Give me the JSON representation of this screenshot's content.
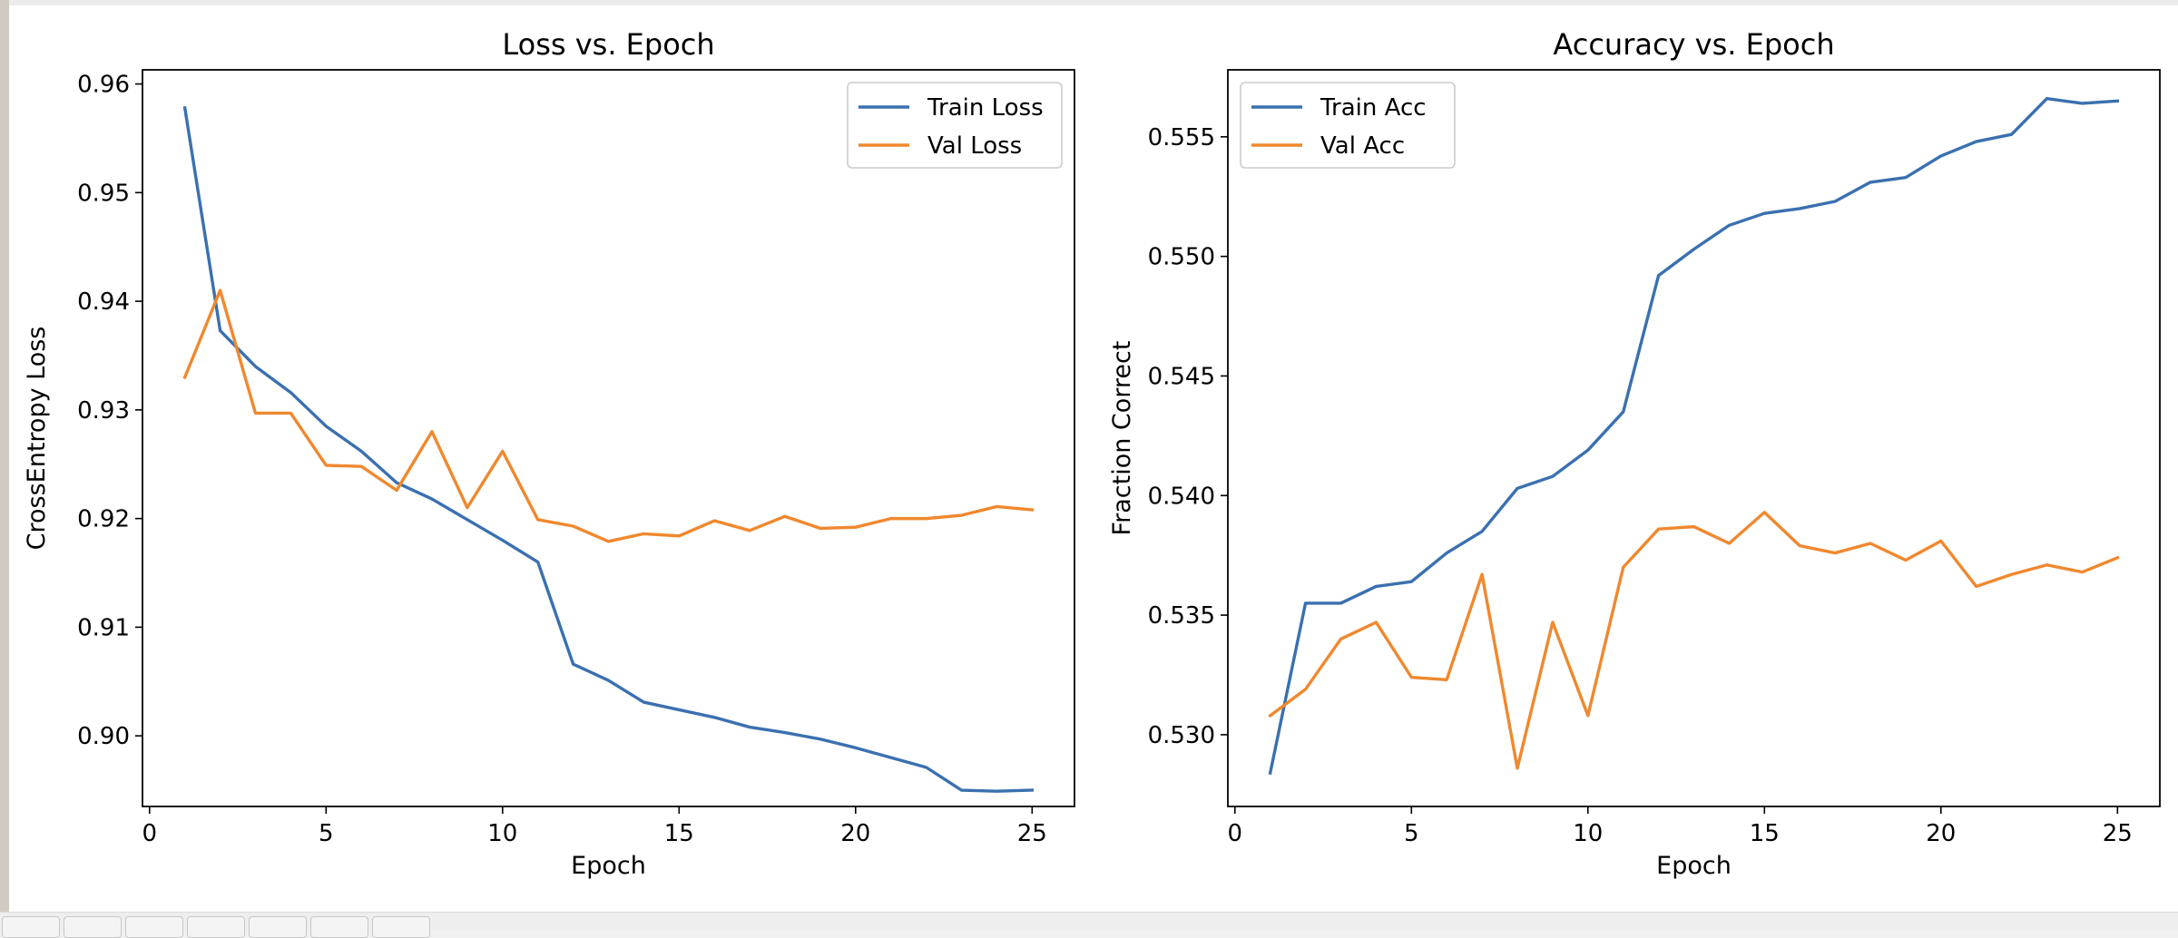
{
  "toolbar": {
    "icons": [
      "home-icon",
      "back-arrow-icon",
      "forward-arrow-icon",
      "pan-icon",
      "zoom-icon",
      "configure-icon",
      "save-icon"
    ]
  },
  "colors": {
    "train": "#3a70b0",
    "val": "#f0882e"
  },
  "chart_data": [
    {
      "type": "line",
      "title": "Loss vs. Epoch",
      "xlabel": "Epoch",
      "ylabel": "CrossEntropy Loss",
      "xlim": [
        -0.2,
        26.2
      ],
      "ylim": [
        0.8935,
        0.9613
      ],
      "xticks": [
        0,
        5,
        10,
        15,
        20,
        25
      ],
      "yticks": [
        0.9,
        0.91,
        0.92,
        0.93,
        0.94,
        0.95,
        0.96
      ],
      "ytick_labels": [
        "0.90",
        "0.91",
        "0.92",
        "0.93",
        "0.94",
        "0.95",
        "0.96"
      ],
      "legend_position": "top-right",
      "x": [
        1,
        2,
        3,
        4,
        5,
        6,
        7,
        8,
        9,
        10,
        11,
        12,
        13,
        14,
        15,
        16,
        17,
        18,
        19,
        20,
        21,
        22,
        23,
        24,
        25
      ],
      "series": [
        {
          "name": "Train Loss",
          "color": "#3a70b0",
          "values": [
            0.9578,
            0.9373,
            0.934,
            0.9316,
            0.9285,
            0.9262,
            0.9233,
            0.9218,
            0.9199,
            0.918,
            0.916,
            0.9066,
            0.9051,
            0.9031,
            0.9024,
            0.9017,
            0.9008,
            0.9003,
            0.8997,
            0.8989,
            0.898,
            0.8971,
            0.895,
            0.8949,
            0.895
          ]
        },
        {
          "name": "Val Loss",
          "color": "#f0882e",
          "values": [
            0.933,
            0.941,
            0.9297,
            0.9297,
            0.9249,
            0.9248,
            0.9226,
            0.928,
            0.921,
            0.9262,
            0.9199,
            0.9193,
            0.9179,
            0.9186,
            0.9184,
            0.9198,
            0.9189,
            0.9202,
            0.9191,
            0.9192,
            0.92,
            0.92,
            0.9203,
            0.9211,
            0.9208
          ]
        }
      ]
    },
    {
      "type": "line",
      "title": "Accuracy vs. Epoch",
      "xlabel": "Epoch",
      "ylabel": "Fraction Correct",
      "xlim": [
        -0.2,
        26.2
      ],
      "ylim": [
        0.527,
        0.5578
      ],
      "xticks": [
        0,
        5,
        10,
        15,
        20,
        25
      ],
      "yticks": [
        0.53,
        0.535,
        0.54,
        0.545,
        0.55,
        0.555
      ],
      "ytick_labels": [
        "0.530",
        "0.535",
        "0.540",
        "0.545",
        "0.550",
        "0.555"
      ],
      "legend_position": "top-left",
      "x": [
        1,
        2,
        3,
        4,
        5,
        6,
        7,
        8,
        9,
        10,
        11,
        12,
        13,
        14,
        15,
        16,
        17,
        18,
        19,
        20,
        21,
        22,
        23,
        24,
        25
      ],
      "series": [
        {
          "name": "Train Acc",
          "color": "#3a70b0",
          "values": [
            0.5284,
            0.5355,
            0.5355,
            0.5362,
            0.5364,
            0.5376,
            0.5385,
            0.5403,
            0.5408,
            0.5419,
            0.5435,
            0.5492,
            0.5503,
            0.5513,
            0.5518,
            0.552,
            0.5523,
            0.5531,
            0.5533,
            0.5542,
            0.5548,
            0.5551,
            0.5566,
            0.5564,
            0.5565
          ]
        },
        {
          "name": "Val Acc",
          "color": "#f0882e",
          "values": [
            0.5308,
            0.5319,
            0.534,
            0.5347,
            0.5324,
            0.5323,
            0.5367,
            0.5286,
            0.5347,
            0.5308,
            0.537,
            0.5386,
            0.5387,
            0.538,
            0.5393,
            0.5379,
            0.5376,
            0.538,
            0.5373,
            0.5381,
            0.5362,
            0.5367,
            0.5371,
            0.5368,
            0.5374
          ]
        }
      ]
    }
  ]
}
